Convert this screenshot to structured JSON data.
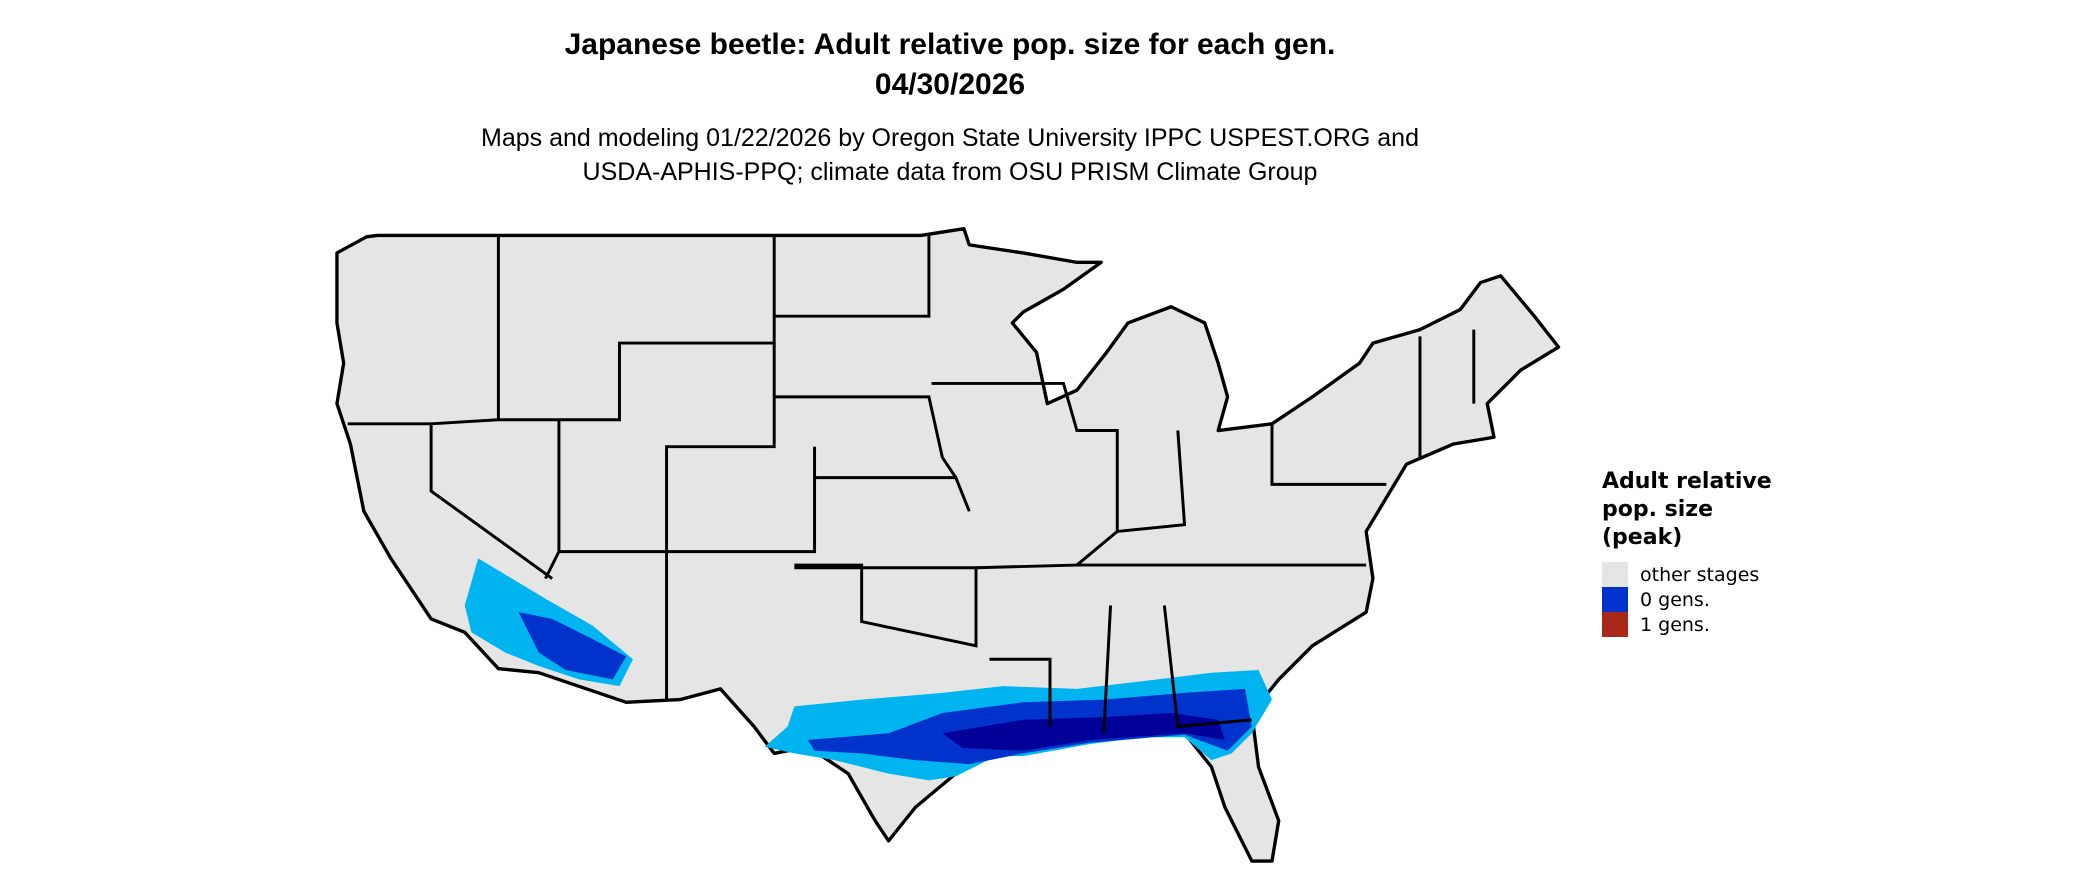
{
  "title_line1": "Japanese beetle: Adult relative pop. size for each gen.",
  "title_line2": "04/30/2026",
  "subtitle_line1": "Maps and modeling 01/22/2026 by Oregon State University IPPC USPEST.ORG and",
  "subtitle_line2": "USDA-APHIS-PPQ; climate data from OSU PRISM Climate Group",
  "legend": {
    "title_lines": [
      "Adult relative",
      "pop. size",
      "(peak)"
    ],
    "items": [
      {
        "label": "other stages",
        "color": "#e5e5e5"
      },
      {
        "label": "0 gens.",
        "color": "#0033cc"
      },
      {
        "label": "1 gens.",
        "color": "#a8281a"
      }
    ]
  },
  "colors": {
    "land": "#e5e5e5",
    "border": "#000000",
    "light_blue": "#00b4f0",
    "mid_blue": "#0033cc",
    "dark_blue": "#000099"
  }
}
